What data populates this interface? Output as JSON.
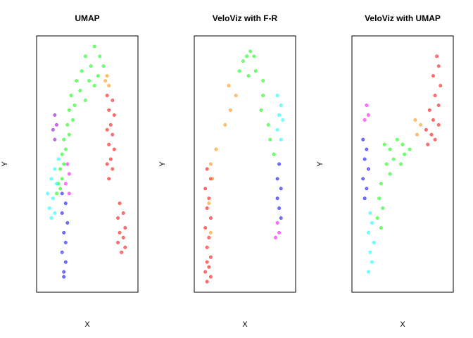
{
  "chart_data": [
    {
      "type": "scatter",
      "title": "UMAP",
      "xlabel": "X",
      "ylabel": "Y",
      "grid": false,
      "legend": "none",
      "series": [
        {
          "color": "#00FF00",
          "points": [
            [
              58,
              2
            ],
            [
              48,
              6
            ],
            [
              64,
              6
            ],
            [
              44,
              12
            ],
            [
              54,
              10
            ],
            [
              68,
              10
            ],
            [
              38,
              16
            ],
            [
              52,
              16
            ],
            [
              62,
              14
            ],
            [
              32,
              22
            ],
            [
              42,
              20
            ],
            [
              58,
              18
            ],
            [
              30,
              28
            ],
            [
              36,
              26
            ],
            [
              48,
              24
            ],
            [
              28,
              34
            ],
            [
              34,
              32
            ],
            [
              24,
              40
            ],
            [
              30,
              38
            ],
            [
              22,
              46
            ],
            [
              26,
              44
            ],
            [
              20,
              52
            ],
            [
              24,
              50
            ],
            [
              18,
              58
            ],
            [
              22,
              56
            ],
            [
              16,
              62
            ],
            [
              20,
              60
            ]
          ]
        },
        {
          "color": "#FF8C00",
          "points": [
            [
              72,
              14
            ],
            [
              74,
              18
            ],
            [
              70,
              16
            ]
          ]
        },
        {
          "color": "#FF0000",
          "points": [
            [
              72,
              22
            ],
            [
              78,
              24
            ],
            [
              74,
              28
            ],
            [
              80,
              30
            ],
            [
              76,
              34
            ],
            [
              72,
              36
            ],
            [
              78,
              38
            ],
            [
              74,
              42
            ],
            [
              80,
              44
            ],
            [
              76,
              48
            ],
            [
              72,
              50
            ],
            [
              78,
              52
            ],
            [
              74,
              56
            ],
            [
              86,
              66
            ],
            [
              90,
              70
            ],
            [
              84,
              72
            ],
            [
              92,
              76
            ],
            [
              86,
              78
            ],
            [
              90,
              80
            ],
            [
              84,
              82
            ],
            [
              92,
              84
            ],
            [
              88,
              86
            ]
          ]
        },
        {
          "color": "#9400D3",
          "points": [
            [
              14,
              30
            ],
            [
              16,
              34
            ],
            [
              12,
              36
            ],
            [
              14,
              40
            ]
          ]
        },
        {
          "color": "#00FFFF",
          "points": [
            [
              18,
              48
            ],
            [
              14,
              52
            ],
            [
              10,
              56
            ],
            [
              16,
              58
            ],
            [
              6,
              62
            ],
            [
              12,
              64
            ],
            [
              8,
              68
            ],
            [
              14,
              70
            ],
            [
              10,
              72
            ]
          ]
        },
        {
          "color": "#FF00FF",
          "points": [
            [
              28,
              50
            ],
            [
              30,
              54
            ],
            [
              26,
              58
            ],
            [
              30,
              62
            ]
          ]
        },
        {
          "color": "#0000FF",
          "points": [
            [
              22,
              62
            ],
            [
              26,
              66
            ],
            [
              22,
              70
            ],
            [
              28,
              74
            ],
            [
              24,
              78
            ],
            [
              26,
              82
            ],
            [
              22,
              86
            ],
            [
              26,
              90
            ],
            [
              24,
              94
            ],
            [
              24,
              96
            ]
          ]
        }
      ]
    },
    {
      "type": "scatter",
      "title": "VeloViz with F-R",
      "xlabel": "X",
      "ylabel": "Y",
      "grid": false,
      "legend": "none",
      "series": [
        {
          "color": "#FF0000",
          "points": [
            [
              8,
              52
            ],
            [
              12,
              56
            ],
            [
              6,
              60
            ],
            [
              10,
              64
            ],
            [
              8,
              68
            ],
            [
              12,
              72
            ],
            [
              6,
              76
            ],
            [
              10,
              80
            ],
            [
              8,
              84
            ],
            [
              12,
              88
            ],
            [
              8,
              90
            ],
            [
              10,
              92
            ],
            [
              6,
              94
            ],
            [
              12,
              96
            ],
            [
              8,
              98
            ]
          ]
        },
        {
          "color": "#FF8C00",
          "points": [
            [
              12,
              50
            ],
            [
              14,
              56
            ],
            [
              18,
              44
            ],
            [
              28,
              34
            ],
            [
              34,
              28
            ],
            [
              40,
              22
            ],
            [
              32,
              18
            ],
            [
              10,
              66
            ],
            [
              12,
              78
            ]
          ]
        },
        {
          "color": "#00FF00",
          "points": [
            [
              48,
              8
            ],
            [
              52,
              6
            ],
            [
              56,
              4
            ],
            [
              60,
              6
            ],
            [
              44,
              12
            ],
            [
              62,
              12
            ],
            [
              54,
              14
            ],
            [
              70,
              22
            ],
            [
              68,
              28
            ],
            [
              76,
              34
            ],
            [
              78,
              40
            ],
            [
              82,
              46
            ],
            [
              70,
              16
            ]
          ]
        },
        {
          "color": "#00FFFF",
          "points": [
            [
              86,
              22
            ],
            [
              90,
              26
            ],
            [
              88,
              30
            ],
            [
              92,
              32
            ],
            [
              86,
              36
            ],
            [
              90,
              40
            ]
          ]
        },
        {
          "color": "#0000FF",
          "points": [
            [
              88,
              50
            ],
            [
              86,
              56
            ],
            [
              90,
              60
            ],
            [
              86,
              64
            ],
            [
              88,
              68
            ],
            [
              90,
              72
            ]
          ]
        },
        {
          "color": "#FF00FF",
          "points": [
            [
              86,
              74
            ],
            [
              88,
              78
            ],
            [
              84,
              80
            ]
          ]
        }
      ]
    },
    {
      "type": "scatter",
      "title": "VeloViz with UMAP",
      "xlabel": "X",
      "ylabel": "Y",
      "grid": false,
      "legend": "none",
      "series": [
        {
          "color": "#FF0000",
          "points": [
            [
              88,
              6
            ],
            [
              90,
              10
            ],
            [
              84,
              14
            ],
            [
              92,
              18
            ],
            [
              86,
              22
            ],
            [
              90,
              26
            ],
            [
              80,
              28
            ],
            [
              84,
              32
            ],
            [
              90,
              34
            ],
            [
              76,
              36
            ],
            [
              82,
              38
            ],
            [
              86,
              40
            ],
            [
              78,
              42
            ]
          ]
        },
        {
          "color": "#FF8C00",
          "points": [
            [
              64,
              32
            ],
            [
              70,
              34
            ],
            [
              66,
              38
            ]
          ]
        },
        {
          "color": "#00FF00",
          "points": [
            [
              30,
              42
            ],
            [
              36,
              44
            ],
            [
              44,
              40
            ],
            [
              50,
              42
            ],
            [
              58,
              44
            ],
            [
              52,
              46
            ],
            [
              40,
              48
            ],
            [
              32,
              50
            ],
            [
              48,
              50
            ],
            [
              36,
              54
            ],
            [
              26,
              58
            ],
            [
              24,
              64
            ],
            [
              28,
              68
            ],
            [
              22,
              72
            ],
            [
              26,
              76
            ]
          ]
        },
        {
          "color": "#FF00FF",
          "points": [
            [
              10,
              26
            ],
            [
              12,
              30
            ],
            [
              8,
              32
            ]
          ]
        },
        {
          "color": "#0000FF",
          "points": [
            [
              6,
              40
            ],
            [
              10,
              44
            ],
            [
              8,
              48
            ],
            [
              12,
              52
            ],
            [
              6,
              56
            ],
            [
              10,
              60
            ],
            [
              8,
              64
            ]
          ]
        },
        {
          "color": "#00FFFF",
          "points": [
            [
              14,
              70
            ],
            [
              16,
              74
            ],
            [
              12,
              78
            ],
            [
              18,
              82
            ],
            [
              14,
              86
            ],
            [
              16,
              90
            ],
            [
              12,
              94
            ]
          ]
        }
      ]
    }
  ]
}
